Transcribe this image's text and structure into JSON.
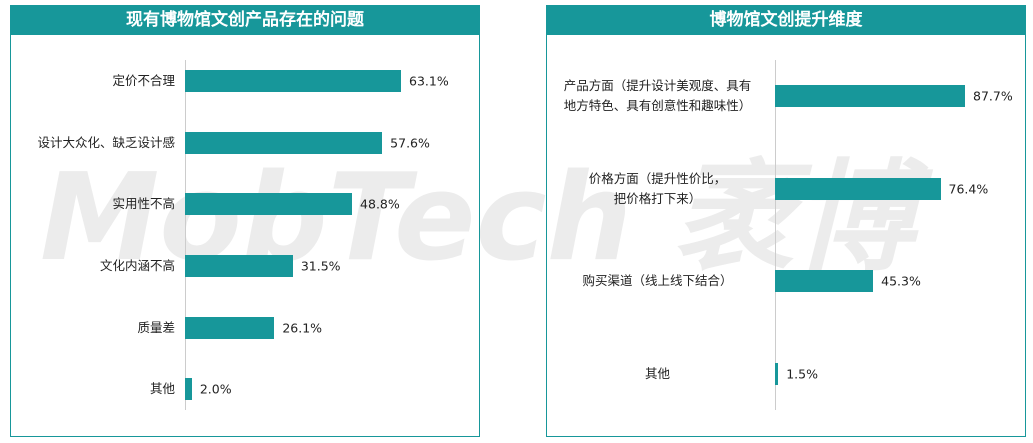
{
  "watermark": "MobTech 袤博",
  "chart_data": [
    {
      "type": "bar",
      "orientation": "horizontal",
      "title": "现有博物馆文创产品存在的问题",
      "color": "#17979a",
      "categories": [
        "定价不合理",
        "设计大众化、缺乏设计感",
        "实用性不高",
        "文化内涵不高",
        "质量差",
        "其他"
      ],
      "values": [
        63.1,
        57.6,
        48.8,
        31.5,
        26.1,
        2.0
      ],
      "value_labels": [
        "63.1%",
        "57.6%",
        "48.8%",
        "31.5%",
        "26.1%",
        "2.0%"
      ]
    },
    {
      "type": "bar",
      "orientation": "horizontal",
      "title": "博物馆文创提升维度",
      "color": "#17979a",
      "categories": [
        "产品方面（提升设计美观度、具有\n地方特色、具有创意性和趣味性）",
        "价格方面（提升性价比，\n把价格打下来）",
        "购买渠道（线上线下结合）",
        "其他"
      ],
      "values": [
        87.7,
        76.4,
        45.3,
        1.5
      ],
      "value_labels": [
        "87.7%",
        "76.4%",
        "45.3%",
        "1.5%"
      ]
    }
  ]
}
